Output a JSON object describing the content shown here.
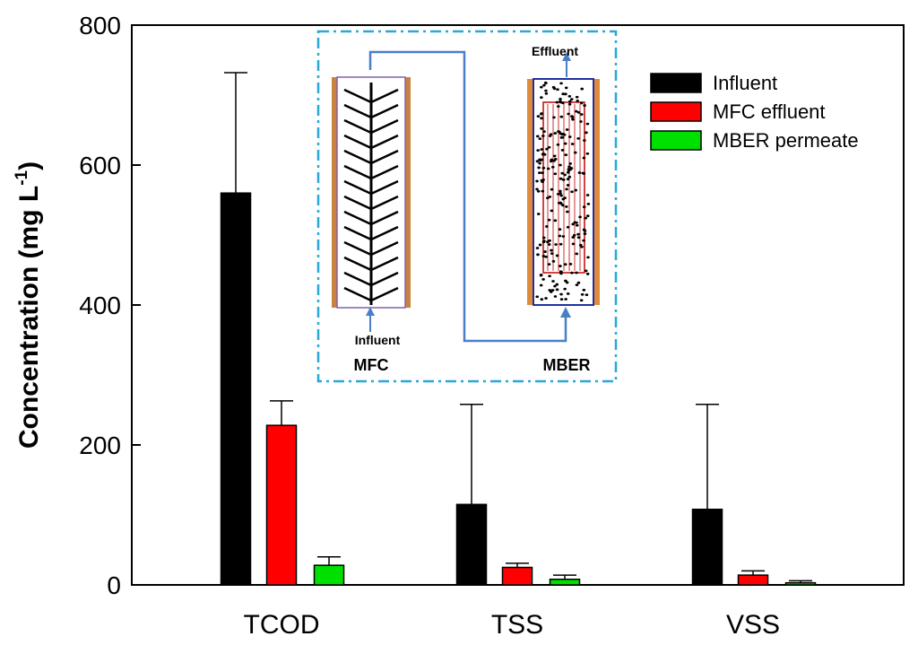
{
  "chart_data": {
    "type": "bar",
    "categories": [
      "TCOD",
      "TSS",
      "VSS"
    ],
    "series": [
      {
        "name": "Influent",
        "color": "#000000",
        "values": [
          560,
          115,
          108
        ],
        "errors": [
          172,
          143,
          150
        ]
      },
      {
        "name": "MFC effluent",
        "color": "#ff0000",
        "values": [
          228,
          25,
          14
        ],
        "errors": [
          35,
          6,
          6
        ]
      },
      {
        "name": "MBER permeate",
        "color": "#00e000",
        "values": [
          28,
          8,
          3
        ],
        "errors": [
          12,
          6,
          3
        ]
      }
    ],
    "ylabel": {
      "main": "Concentration (mg L",
      "superscript": "-1",
      "close": ")"
    },
    "xlabel": "",
    "ylim": [
      0,
      800
    ],
    "yticks": [
      0,
      200,
      400,
      600,
      800
    ],
    "legend_position": "top-right",
    "grid": false
  },
  "inset": {
    "effluent_label": "Effluent",
    "influent_label": "Influent",
    "mfc_label": "MFC",
    "mber_label": "MBER"
  }
}
